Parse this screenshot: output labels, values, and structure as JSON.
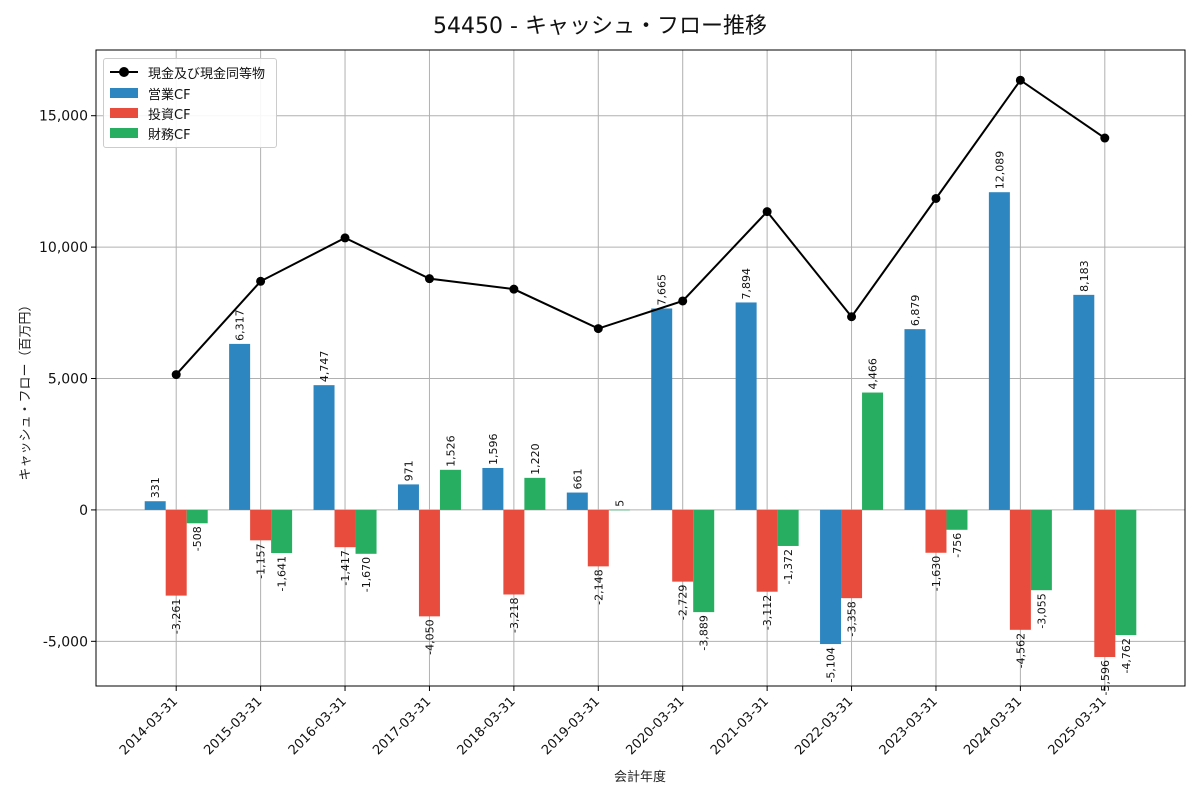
{
  "chart_data": {
    "type": "bar",
    "title": "54450 - キャッシュ・フロー推移",
    "xlabel": "会計年度",
    "ylabel": "キャッシュ・フロー（百万円）",
    "categories": [
      "2014-03-31",
      "2015-03-31",
      "2016-03-31",
      "2017-03-31",
      "2018-03-31",
      "2019-03-31",
      "2020-03-31",
      "2021-03-31",
      "2022-03-31",
      "2023-03-31",
      "2024-03-31",
      "2025-03-31"
    ],
    "ylim": [
      -6700,
      17500
    ],
    "yticks": [
      -5000,
      0,
      5000,
      10000,
      15000
    ],
    "ytick_labels": [
      "-5,000",
      "0",
      "5,000",
      "10,000",
      "15,000"
    ],
    "grid": true,
    "legend_position": "top-left",
    "series": [
      {
        "name": "営業CF",
        "kind": "bar",
        "color": "#2e86c1",
        "values": [
          331,
          6317,
          4747,
          971,
          1596,
          661,
          7665,
          7894,
          -5104,
          6879,
          12089,
          8183
        ],
        "labels": [
          "331",
          "6,317",
          "4,747",
          "971",
          "1,596",
          "661",
          "7,665",
          "7,894",
          "-5,104",
          "6,879",
          "12,089",
          "8,183"
        ]
      },
      {
        "name": "投資CF",
        "kind": "bar",
        "color": "#e74c3c",
        "values": [
          -3261,
          -1157,
          -1417,
          -4050,
          -3218,
          -2148,
          -2729,
          -3112,
          -3358,
          -1630,
          -4562,
          -5596
        ],
        "labels": [
          "-3,261",
          "-1,157",
          "-1,417",
          "-4,050",
          "-3,218",
          "-2,148",
          "-2,729",
          "-3,112",
          "-3,358",
          "-1,630",
          "-4,562",
          "-5,596"
        ]
      },
      {
        "name": "財務CF",
        "kind": "bar",
        "color": "#27ae60",
        "values": [
          -508,
          -1641,
          -1670,
          1526,
          1220,
          5,
          -3889,
          -1372,
          4466,
          -756,
          -3055,
          -4762
        ],
        "labels": [
          "-508",
          "-1,641",
          "-1,670",
          "1,526",
          "1,220",
          "5",
          "-3,889",
          "-1,372",
          "4,466",
          "-756",
          "-3,055",
          "-4,762"
        ]
      },
      {
        "name": "現金及び現金同等物",
        "kind": "line",
        "color": "#000000",
        "values": [
          5150,
          8700,
          10350,
          8800,
          8400,
          6900,
          7950,
          11350,
          7350,
          11850,
          16350,
          14150
        ]
      }
    ]
  }
}
